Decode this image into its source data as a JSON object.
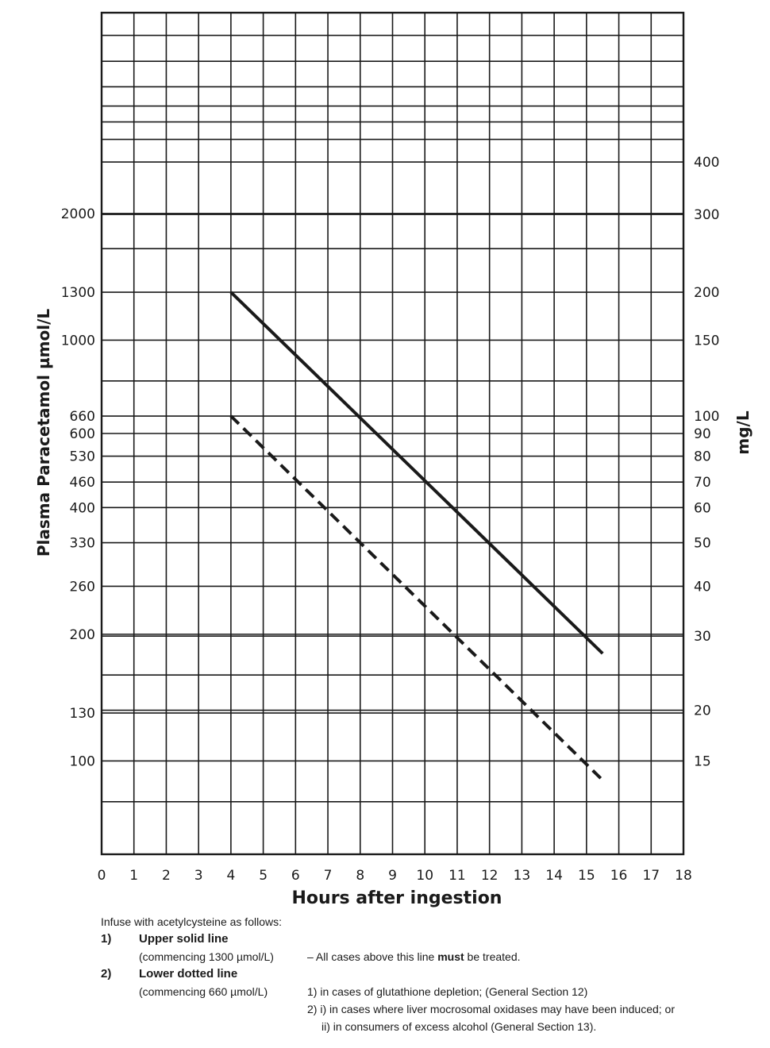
{
  "chart_data": {
    "type": "line",
    "xlabel": "Hours after ingestion",
    "ylabel_left": "Plasma Paracetamol  µmol/L",
    "ylabel_right": "mg/L",
    "xlim": [
      0,
      18
    ],
    "x_ticks": [
      "0",
      "1",
      "2",
      "3",
      "4",
      "5",
      "6",
      "7",
      "8",
      "9",
      "10",
      "11",
      "12",
      "13",
      "14",
      "15",
      "16",
      "17",
      "18"
    ],
    "y_scale": "log",
    "ylim_umol": [
      60,
      6000
    ],
    "left_ticks": [
      {
        "label": "2000",
        "value": 2000
      },
      {
        "label": "1300",
        "value": 1300
      },
      {
        "label": "1000",
        "value": 1000
      },
      {
        "label": "660",
        "value": 660
      },
      {
        "label": "600",
        "value": 600
      },
      {
        "label": "530",
        "value": 530
      },
      {
        "label": "460",
        "value": 460
      },
      {
        "label": "400",
        "value": 400
      },
      {
        "label": "330",
        "value": 330
      },
      {
        "label": "260",
        "value": 260
      },
      {
        "label": "200",
        "value": 200
      },
      {
        "label": "130",
        "value": 130
      },
      {
        "label": "100",
        "value": 100
      }
    ],
    "right_ticks": [
      {
        "label": "400",
        "value": 2650
      },
      {
        "label": "300",
        "value": 1990
      },
      {
        "label": "200",
        "value": 1300
      },
      {
        "label": "150",
        "value": 1000
      },
      {
        "label": "100",
        "value": 660
      },
      {
        "label": "90",
        "value": 600
      },
      {
        "label": "80",
        "value": 530
      },
      {
        "label": "70",
        "value": 460
      },
      {
        "label": "60",
        "value": 400
      },
      {
        "label": "50",
        "value": 330
      },
      {
        "label": "40",
        "value": 260
      },
      {
        "label": "30",
        "value": 198
      },
      {
        "label": "20",
        "value": 132
      },
      {
        "label": "15",
        "value": 100
      }
    ],
    "unlabeled_grid_values": [
      6000,
      5300,
      4600,
      4000,
      3600,
      3300,
      3000,
      1650,
      800,
      160,
      80
    ],
    "series": [
      {
        "style": "solid",
        "x": [
          4,
          15.5
        ],
        "y": [
          1300,
          180
        ]
      },
      {
        "style": "dashed",
        "x": [
          4,
          15.5
        ],
        "y": [
          660,
          90
        ]
      }
    ],
    "grid": true
  },
  "notes": {
    "intro": "Infuse with acetylcysteine as follows:",
    "item1_num": "1)",
    "item1_title": "Upper solid line",
    "item1_commence": "(commencing 1300  µmol/L)",
    "item1_text_before": "– All cases above this line ",
    "item1_text_bold": "must",
    "item1_text_after": " be treated.",
    "item2_num": "2)",
    "item2_title": "Lower dotted line",
    "item2_commence": "(commencing 660  µmol/L)",
    "item2_line1": "1)  in cases of glutathione depletion; (General Section 12)",
    "item2_line2": "2)  i) in cases where liver mocrosomal oxidases may have been induced; or",
    "item2_line3": "ii) in consumers of excess alcohol (General Section 13)."
  }
}
